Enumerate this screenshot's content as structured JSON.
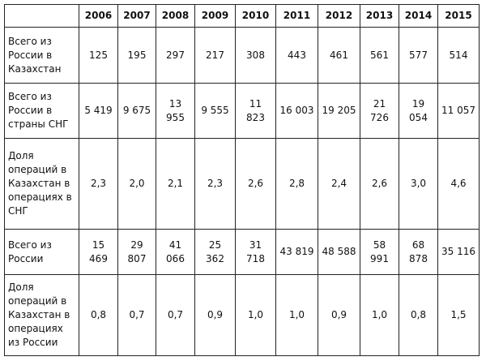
{
  "table": {
    "columns": [
      "2006",
      "2007",
      "2008",
      "2009",
      "2010",
      "2011",
      "2012",
      "2013",
      "2014",
      "2015"
    ],
    "rows": [
      {
        "label": "Всего из России в Казахстан",
        "cells": [
          "125",
          "195",
          "297",
          "217",
          "308",
          "443",
          "461",
          "561",
          "577",
          "514"
        ]
      },
      {
        "label": "Всего из России в страны СНГ",
        "cells": [
          "5 419",
          "9 675",
          "13 955",
          "9 555",
          "11 823",
          "16 003",
          "19 205",
          "21 726",
          "19 054",
          "11 057"
        ]
      },
      {
        "label": "Доля операций в Казахстан в операциях в СНГ",
        "cells": [
          "2,3",
          "2,0",
          "2,1",
          "2,3",
          "2,6",
          "2,8",
          "2,4",
          "2,6",
          "3,0",
          "4,6"
        ]
      },
      {
        "label": "Всего из России",
        "cells": [
          "15 469",
          "29 807",
          "41 066",
          "25 362",
          "31 718",
          "43 819",
          "48 588",
          "58 991",
          "68 878",
          "35 116"
        ]
      },
      {
        "label": "Доля операций в Казахстан в операциях из России",
        "cells": [
          "0,8",
          "0,7",
          "0,7",
          "0,9",
          "1,0",
          "1,0",
          "0,9",
          "1,0",
          "0,8",
          "1,5"
        ]
      }
    ]
  }
}
